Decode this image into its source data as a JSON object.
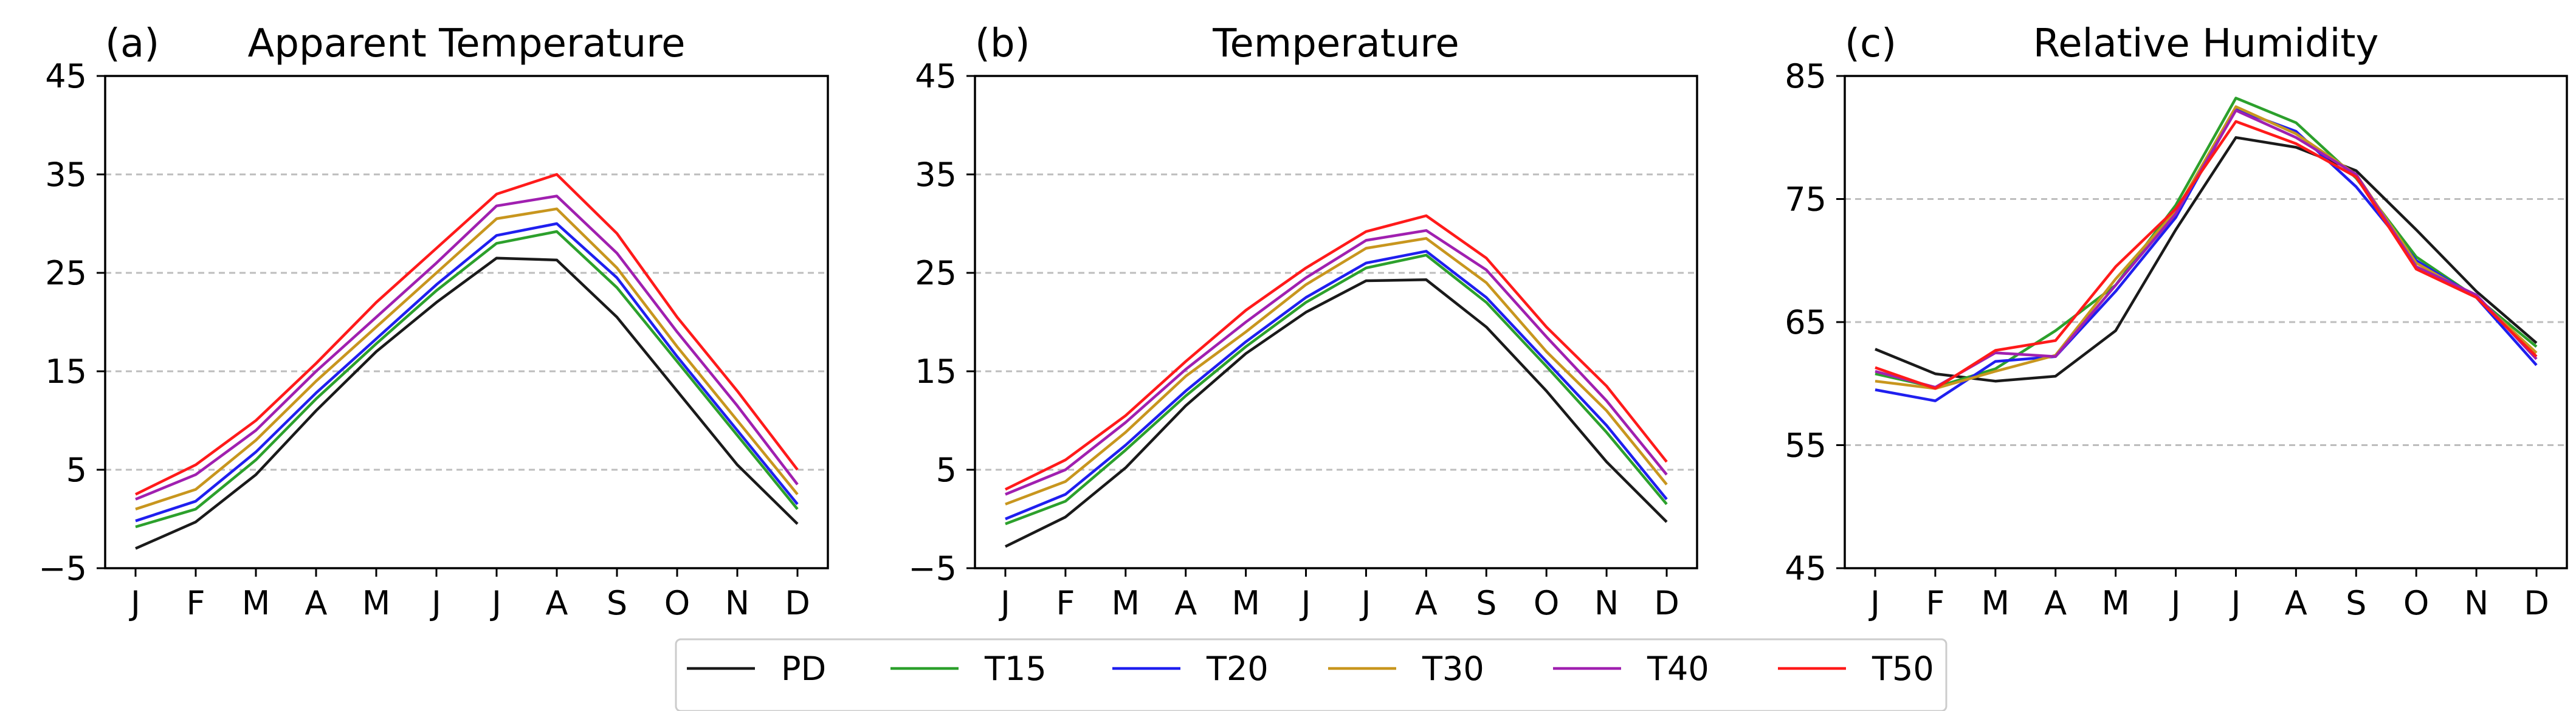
{
  "months": [
    "J",
    "F",
    "M",
    "A",
    "M",
    "J",
    "J",
    "A",
    "S",
    "O",
    "N",
    "D"
  ],
  "legend": [
    {
      "key": "PD",
      "label": "PD",
      "color": "#1a1a1a"
    },
    {
      "key": "T15",
      "label": "T15",
      "color": "#2ca02c"
    },
    {
      "key": "T20",
      "label": "T20",
      "color": "#1f1fef"
    },
    {
      "key": "T30",
      "label": "T30",
      "color": "#c8961e"
    },
    {
      "key": "T40",
      "label": "T40",
      "color": "#a020b0"
    },
    {
      "key": "T50",
      "label": "T50",
      "color": "#ff1a1a"
    }
  ],
  "chart_data": [
    {
      "type": "line",
      "panel_label": "(a)",
      "title": "Apparent Temperature",
      "categories": [
        "J",
        "F",
        "M",
        "A",
        "M",
        "J",
        "J",
        "A",
        "S",
        "O",
        "N",
        "D"
      ],
      "ylim": [
        -5,
        45
      ],
      "yticks": [
        "−5",
        "5",
        "15",
        "25",
        "35",
        "45"
      ],
      "ytick_values": [
        -5,
        5,
        15,
        25,
        35,
        45
      ],
      "gridlines": [
        5,
        15,
        25,
        35
      ],
      "series": [
        {
          "name": "PD",
          "values": [
            -3.0,
            -0.3,
            4.5,
            11.0,
            17.0,
            22.0,
            26.5,
            26.3,
            20.5,
            13.0,
            5.5,
            -0.5
          ]
        },
        {
          "name": "T15",
          "values": [
            -0.8,
            1.0,
            6.0,
            12.2,
            17.8,
            23.2,
            28.0,
            29.2,
            23.5,
            16.0,
            8.5,
            1.0
          ]
        },
        {
          "name": "T20",
          "values": [
            -0.2,
            1.8,
            6.8,
            12.8,
            18.3,
            23.8,
            28.8,
            30.0,
            24.5,
            16.5,
            9.0,
            1.5
          ]
        },
        {
          "name": "T30",
          "values": [
            1.0,
            3.0,
            8.0,
            14.0,
            19.5,
            25.0,
            30.5,
            31.5,
            25.5,
            17.5,
            10.0,
            2.5
          ]
        },
        {
          "name": "T40",
          "values": [
            2.0,
            4.5,
            9.0,
            15.0,
            20.5,
            26.0,
            31.8,
            32.8,
            27.0,
            19.0,
            11.5,
            3.5
          ]
        },
        {
          "name": "T50",
          "values": [
            2.5,
            5.5,
            10.0,
            15.8,
            22.0,
            27.5,
            33.0,
            35.0,
            29.0,
            20.5,
            13.0,
            5.0
          ]
        }
      ]
    },
    {
      "type": "line",
      "panel_label": "(b)",
      "title": "Temperature",
      "categories": [
        "J",
        "F",
        "M",
        "A",
        "M",
        "J",
        "J",
        "A",
        "S",
        "O",
        "N",
        "D"
      ],
      "ylim": [
        -5,
        45
      ],
      "yticks": [
        "−5",
        "5",
        "15",
        "25",
        "35",
        "45"
      ],
      "ytick_values": [
        -5,
        5,
        15,
        25,
        35,
        45
      ],
      "gridlines": [
        5,
        15,
        25,
        35
      ],
      "series": [
        {
          "name": "PD",
          "values": [
            -2.8,
            0.2,
            5.2,
            11.5,
            16.8,
            21.0,
            24.2,
            24.3,
            19.5,
            13.0,
            5.8,
            -0.3
          ]
        },
        {
          "name": "T15",
          "values": [
            -0.5,
            1.8,
            7.0,
            12.5,
            17.5,
            22.0,
            25.5,
            26.8,
            22.0,
            15.5,
            8.8,
            1.5
          ]
        },
        {
          "name": "T20",
          "values": [
            0.0,
            2.5,
            7.5,
            13.0,
            18.0,
            22.5,
            26.0,
            27.2,
            22.5,
            16.0,
            9.5,
            2.0
          ]
        },
        {
          "name": "T30",
          "values": [
            1.5,
            3.8,
            8.8,
            14.5,
            19.0,
            23.8,
            27.5,
            28.5,
            24.0,
            17.0,
            11.0,
            3.5
          ]
        },
        {
          "name": "T40",
          "values": [
            2.5,
            5.0,
            9.8,
            15.2,
            20.0,
            24.5,
            28.3,
            29.3,
            25.3,
            18.5,
            12.0,
            4.5
          ]
        },
        {
          "name": "T50",
          "values": [
            3.0,
            6.0,
            10.5,
            16.0,
            21.2,
            25.5,
            29.2,
            30.8,
            26.5,
            19.5,
            13.5,
            5.8
          ]
        }
      ]
    },
    {
      "type": "line",
      "panel_label": "(c)",
      "title": "Relative Humidity",
      "categories": [
        "J",
        "F",
        "M",
        "A",
        "M",
        "J",
        "J",
        "A",
        "S",
        "O",
        "N",
        "D"
      ],
      "ylim": [
        45,
        85
      ],
      "yticks": [
        "45",
        "55",
        "65",
        "75",
        "85"
      ],
      "ytick_values": [
        45,
        55,
        65,
        75,
        85
      ],
      "gridlines": [
        55,
        65,
        75
      ],
      "series": [
        {
          "name": "PD",
          "values": [
            62.8,
            60.8,
            60.2,
            60.6,
            64.3,
            72.5,
            80.0,
            79.2,
            77.3,
            72.5,
            67.5,
            63.3
          ]
        },
        {
          "name": "T15",
          "values": [
            60.8,
            59.7,
            61.2,
            64.3,
            68.0,
            74.5,
            83.2,
            81.2,
            76.7,
            70.3,
            67.0,
            63.0
          ]
        },
        {
          "name": "T20",
          "values": [
            59.5,
            58.6,
            61.8,
            62.2,
            67.5,
            73.5,
            82.3,
            80.5,
            76.0,
            70.0,
            67.0,
            61.5
          ]
        },
        {
          "name": "T30",
          "values": [
            60.2,
            59.6,
            61.0,
            62.3,
            68.5,
            74.0,
            82.5,
            80.3,
            77.0,
            69.8,
            67.0,
            62.5
          ]
        },
        {
          "name": "T40",
          "values": [
            61.0,
            59.7,
            62.5,
            62.2,
            68.0,
            73.8,
            82.2,
            80.0,
            77.0,
            69.5,
            67.2,
            62.0
          ]
        },
        {
          "name": "T50",
          "values": [
            61.3,
            59.6,
            62.7,
            63.5,
            69.5,
            74.2,
            81.3,
            79.5,
            76.8,
            69.3,
            67.0,
            62.2
          ]
        }
      ]
    }
  ]
}
